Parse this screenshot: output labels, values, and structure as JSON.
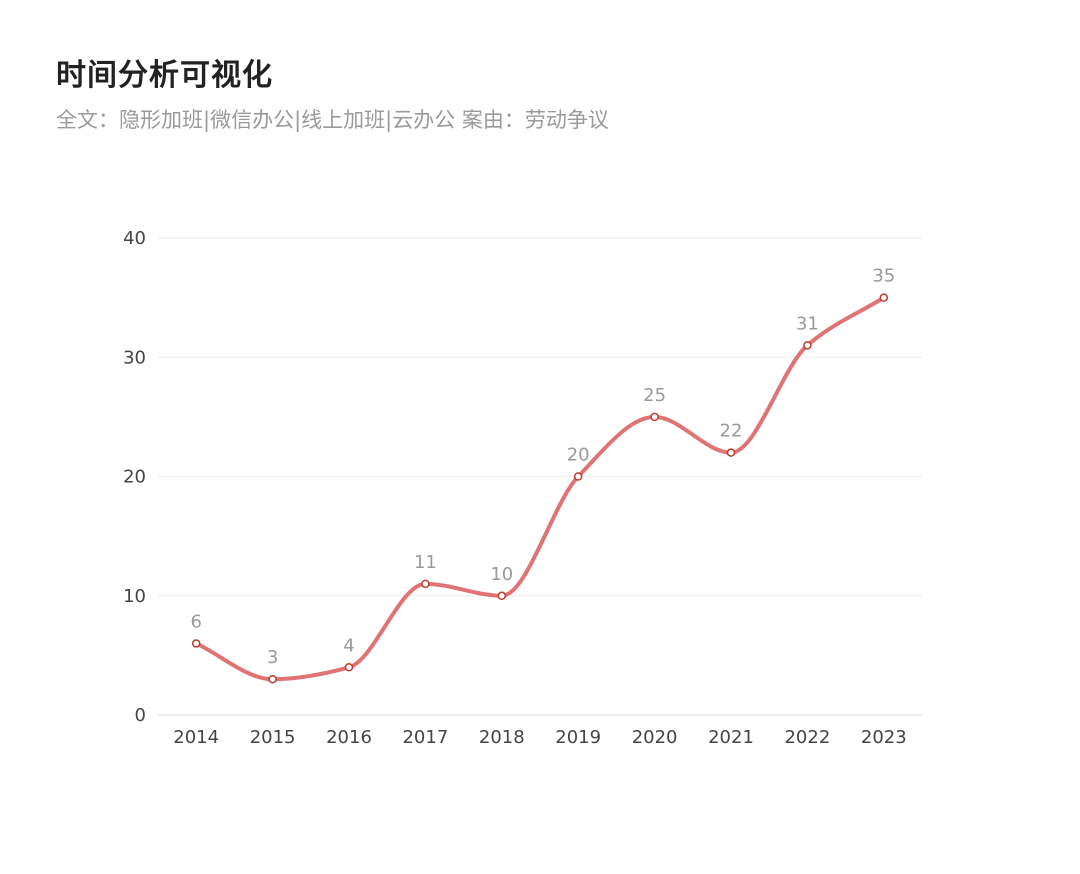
{
  "header": {
    "title": "时间分析可视化",
    "subtitle": "全文：隐形加班|微信办公|线上加班|云办公  案由：劳动争议"
  },
  "colors": {
    "line": "#e07373",
    "point_stroke": "#c0392b",
    "point_fill": "#ffffff",
    "grid": "#eeeeee",
    "axis": "#dddddd"
  },
  "chart_data": {
    "type": "line",
    "smooth": true,
    "categories": [
      "2014",
      "2015",
      "2016",
      "2017",
      "2018",
      "2019",
      "2020",
      "2021",
      "2022",
      "2023"
    ],
    "values": [
      6,
      3,
      4,
      11,
      10,
      20,
      25,
      22,
      31,
      35
    ],
    "ylim": [
      0,
      40
    ],
    "yticks": [
      0,
      10,
      20,
      30,
      40
    ],
    "grid": true,
    "data_labels": true,
    "legend": "none",
    "xlabel": "",
    "ylabel": ""
  }
}
